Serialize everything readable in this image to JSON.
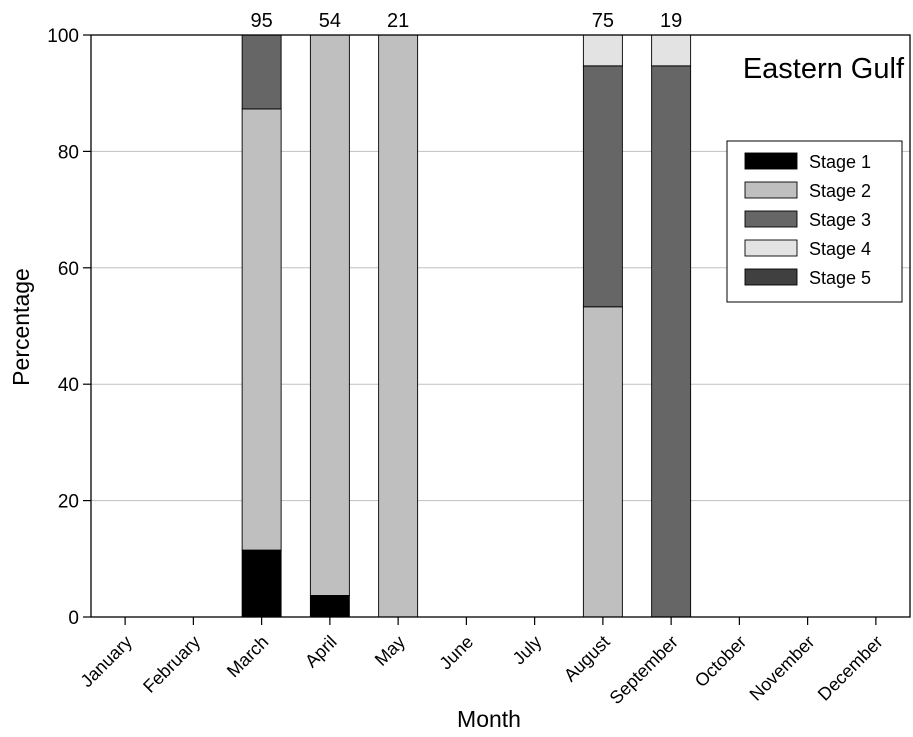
{
  "chart_data": {
    "type": "bar",
    "stacked": true,
    "title": "Eastern Gulf",
    "xlabel": "Month",
    "ylabel": "Percentage",
    "ylim": [
      0,
      100
    ],
    "yticks": [
      0,
      20,
      40,
      60,
      80,
      100
    ],
    "grid": "horizontal",
    "legend_position": "top-right",
    "categories": [
      "January",
      "February",
      "March",
      "April",
      "May",
      "June",
      "July",
      "August",
      "September",
      "October",
      "November",
      "December"
    ],
    "counts": [
      "",
      "",
      "95",
      "54",
      "21",
      "",
      "",
      "75",
      "19",
      "",
      "",
      ""
    ],
    "series": [
      {
        "name": "Stage 1",
        "color": "#000000",
        "values": [
          0,
          0,
          11.5,
          3.7,
          0,
          0,
          0,
          0,
          0,
          0,
          0,
          0
        ]
      },
      {
        "name": "Stage 2",
        "color": "#bfbfbf",
        "values": [
          0,
          0,
          75.8,
          96.3,
          100,
          0,
          0,
          53.3,
          0,
          0,
          0,
          0
        ]
      },
      {
        "name": "Stage 3",
        "color": "#666666",
        "values": [
          0,
          0,
          12.7,
          0,
          0,
          0,
          0,
          41.4,
          94.7,
          0,
          0,
          0
        ]
      },
      {
        "name": "Stage 4",
        "color": "#e3e3e3",
        "values": [
          0,
          0,
          0,
          0,
          0,
          0,
          0,
          5.3,
          5.3,
          0,
          0,
          0
        ]
      },
      {
        "name": "Stage 5",
        "color": "#404040",
        "values": [
          0,
          0,
          0,
          0,
          0,
          0,
          0,
          0,
          0,
          0,
          0,
          0
        ]
      }
    ]
  }
}
